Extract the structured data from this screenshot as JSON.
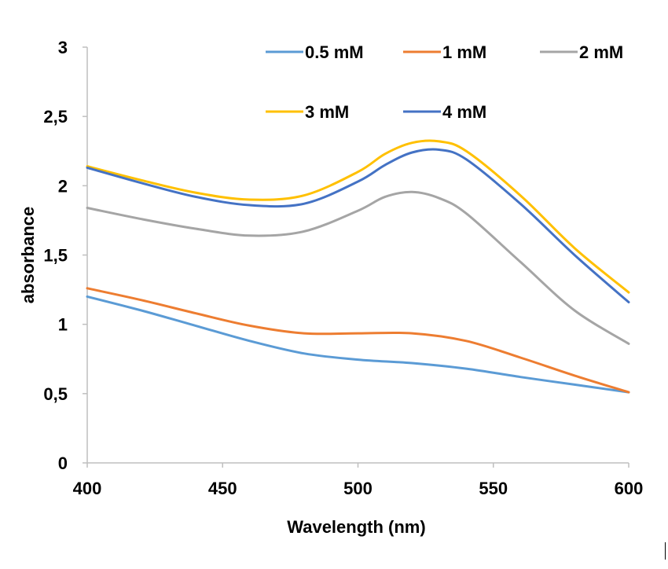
{
  "chart_data": {
    "type": "line",
    "title": "",
    "xlabel": "Wavelength (nm)",
    "ylabel": "absorbance",
    "xlim": [
      400,
      600
    ],
    "ylim": [
      0,
      3
    ],
    "x_ticks": [
      400,
      450,
      500,
      550,
      600
    ],
    "x_tick_labels": [
      "400",
      "450",
      "500",
      "550",
      "600"
    ],
    "y_ticks": [
      0,
      0.5,
      1,
      1.5,
      2,
      2.5,
      3
    ],
    "y_tick_labels": [
      "0",
      "0,5",
      "1",
      "1,5",
      "2",
      "2,5",
      "3"
    ],
    "grid": false,
    "legend_position": "top",
    "series": [
      {
        "name": "0.5 mM",
        "color": "#5b9bd5",
        "x": [
          400,
          420,
          440,
          460,
          480,
          500,
          520,
          540,
          560,
          580,
          600
        ],
        "y": [
          1.2,
          1.1,
          0.99,
          0.88,
          0.79,
          0.745,
          0.72,
          0.68,
          0.62,
          0.565,
          0.51
        ]
      },
      {
        "name": "1 mM",
        "color": "#ed7d31",
        "x": [
          400,
          420,
          440,
          460,
          480,
          500,
          520,
          540,
          560,
          580,
          600
        ],
        "y": [
          1.26,
          1.175,
          1.08,
          0.99,
          0.935,
          0.935,
          0.935,
          0.88,
          0.76,
          0.63,
          0.51
        ]
      },
      {
        "name": "2 mM",
        "color": "#a5a5a5",
        "x": [
          400,
          420,
          440,
          460,
          480,
          500,
          510,
          520,
          530,
          540,
          560,
          580,
          600
        ],
        "y": [
          1.84,
          1.76,
          1.69,
          1.64,
          1.67,
          1.82,
          1.92,
          1.955,
          1.91,
          1.8,
          1.45,
          1.1,
          0.86
        ]
      },
      {
        "name": "3 mM",
        "color": "#ffc000",
        "x": [
          400,
          420,
          440,
          460,
          480,
          500,
          510,
          520,
          530,
          540,
          560,
          580,
          600
        ],
        "y": [
          2.14,
          2.04,
          1.95,
          1.9,
          1.93,
          2.1,
          2.23,
          2.31,
          2.32,
          2.25,
          1.93,
          1.55,
          1.23
        ]
      },
      {
        "name": "4 mM",
        "color": "#4472c4",
        "x": [
          400,
          420,
          440,
          460,
          480,
          500,
          510,
          520,
          530,
          540,
          560,
          580,
          600
        ],
        "y": [
          2.13,
          2.02,
          1.92,
          1.86,
          1.87,
          2.03,
          2.15,
          2.24,
          2.26,
          2.19,
          1.87,
          1.5,
          1.16
        ]
      }
    ]
  }
}
